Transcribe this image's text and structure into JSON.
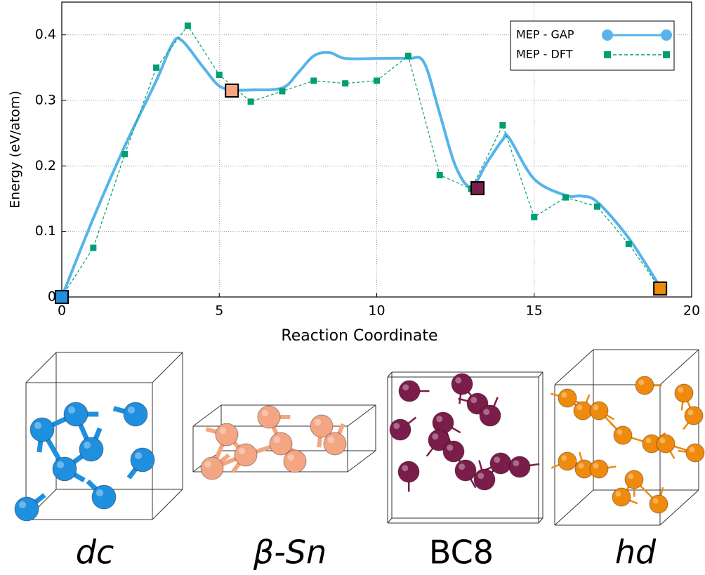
{
  "chart_data": {
    "type": "line",
    "xlabel": "Reaction Coordinate",
    "ylabel": "Energy (eV/atom)",
    "xlim": [
      0,
      20
    ],
    "ylim": [
      0,
      0.45
    ],
    "xticks": [
      0,
      5,
      10,
      15,
      20
    ],
    "yticks": [
      0,
      0.1,
      0.2,
      0.3,
      0.4
    ],
    "grid": true,
    "legend": "upper right",
    "series": [
      {
        "name": "MEP - GAP",
        "color": "#56b4e9",
        "style": "solid",
        "marker": "circle",
        "x": [
          0,
          1,
          2,
          3,
          3.5,
          3.8,
          4.5,
          5,
          5.5,
          6,
          7,
          7.5,
          8,
          8.5,
          9,
          10,
          11,
          11.5,
          12,
          12.5,
          13,
          13.5,
          14,
          14.2,
          15,
          16,
          16.5,
          17,
          18,
          19
        ],
        "values": [
          0,
          0.12,
          0.23,
          0.33,
          0.385,
          0.392,
          0.35,
          0.322,
          0.316,
          0.316,
          0.319,
          0.342,
          0.368,
          0.373,
          0.364,
          0.364,
          0.364,
          0.358,
          0.28,
          0.2,
          0.168,
          0.205,
          0.24,
          0.243,
          0.18,
          0.155,
          0.154,
          0.145,
          0.09,
          0.015
        ]
      },
      {
        "name": "MEP - DFT",
        "color": "#009e73",
        "style": "dashed",
        "marker": "square",
        "x": [
          0,
          1,
          2,
          3,
          4,
          5,
          6,
          7,
          8,
          9,
          10,
          11,
          12,
          13,
          14,
          15,
          16,
          17,
          18,
          19
        ],
        "values": [
          0,
          0.075,
          0.218,
          0.35,
          0.414,
          0.339,
          0.298,
          0.314,
          0.33,
          0.326,
          0.33,
          0.368,
          0.186,
          0.165,
          0.262,
          0.122,
          0.152,
          0.138,
          0.081,
          0.013
        ]
      }
    ],
    "highlights": [
      {
        "label": "dc",
        "x": 0,
        "y": 0,
        "color": "#1f8fdf"
      },
      {
        "label": "β-Sn",
        "x": 5.4,
        "y": 0.315,
        "color": "#f4a582"
      },
      {
        "label": "BC8",
        "x": 13.2,
        "y": 0.166,
        "color": "#7a1d4b"
      },
      {
        "label": "hd",
        "x": 19,
        "y": 0.013,
        "color": "#ef8a0c"
      }
    ]
  }
}
